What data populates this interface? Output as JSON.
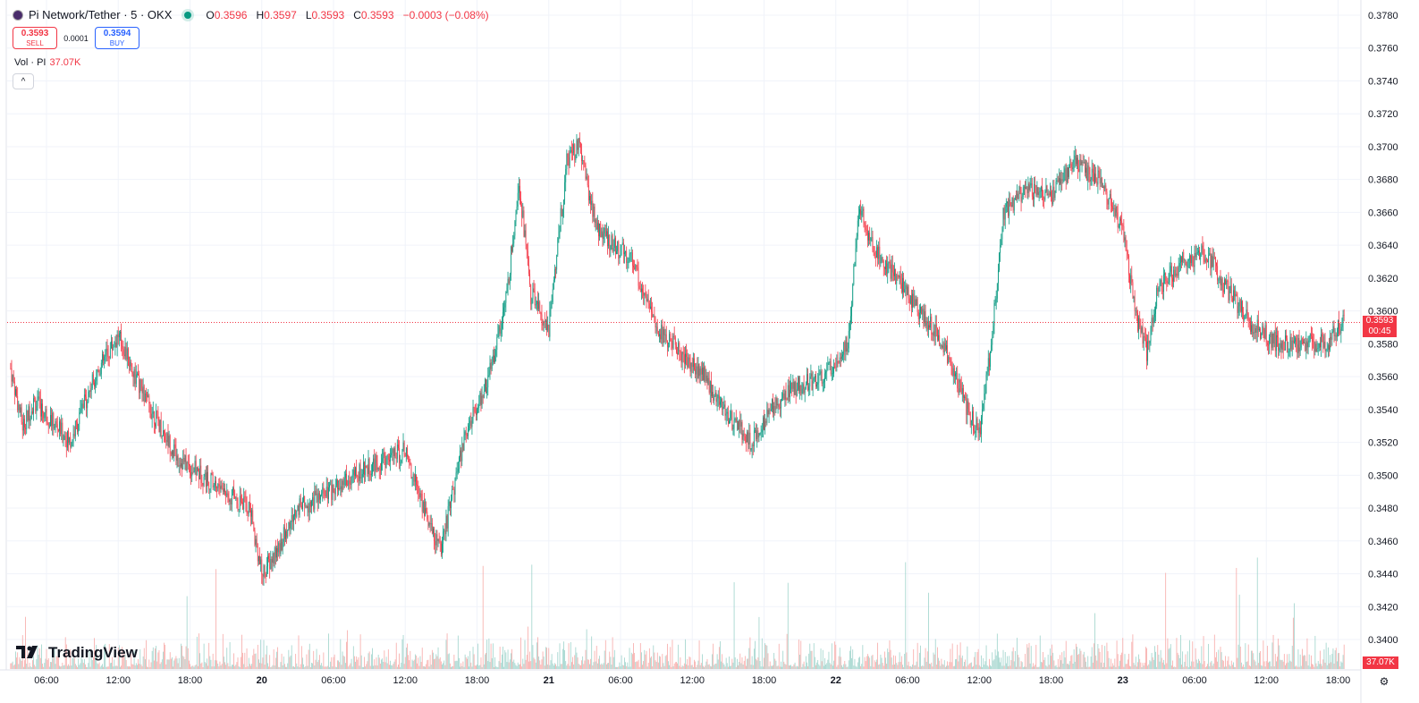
{
  "header": {
    "title": "Pi Network/Tether · 5 · OKX",
    "ohlc": [
      {
        "label": "O",
        "value": "0.3596"
      },
      {
        "label": "H",
        "value": "0.3597"
      },
      {
        "label": "L",
        "value": "0.3593"
      },
      {
        "label": "C",
        "value": "0.3593"
      }
    ],
    "change": "−0.0003 (−0.08%)",
    "sell_price": "0.3593",
    "sell_label": "SELL",
    "spread": "0.0001",
    "buy_price": "0.3594",
    "buy_label": "BUY",
    "volume_label": "Vol · PI",
    "volume_value": "37.07K",
    "collapse_icon": "chevron-up-icon"
  },
  "price_tag": {
    "price": "0.3593",
    "countdown": "00:45"
  },
  "volume_tag": "37.07K",
  "logo_text": "TradingView",
  "colors": {
    "up": "#089981",
    "down": "#f23645",
    "up_vol": "#9ed3cb",
    "down_vol": "#f7a9a7",
    "grid": "#f0f3fa",
    "current_line": "#f23645"
  },
  "chart_data": {
    "type": "candlestick",
    "title": "Pi Network/Tether · 5 · OKX",
    "interval_minutes": 5,
    "ylim": [
      0.339,
      0.378
    ],
    "y_ticks": [
      "0.3780",
      "0.3760",
      "0.3740",
      "0.3720",
      "0.3700",
      "0.3680",
      "0.3660",
      "0.3640",
      "0.3620",
      "0.3600",
      "0.3580",
      "0.3560",
      "0.3540",
      "0.3520",
      "0.3500",
      "0.3480",
      "0.3460",
      "0.3440",
      "0.3420",
      "0.3400"
    ],
    "x_ticks": [
      "06:00",
      "12:00",
      "18:00",
      "20",
      "06:00",
      "12:00",
      "18:00",
      "21",
      "06:00",
      "12:00",
      "18:00",
      "22",
      "06:00",
      "12:00",
      "18:00",
      "23",
      "06:00",
      "12:00",
      "18:00"
    ],
    "current_price": 0.3593,
    "price_path": [
      {
        "t": "19 03:00",
        "price": 0.3565
      },
      {
        "t": "19 04:00",
        "price": 0.353
      },
      {
        "t": "19 05:00",
        "price": 0.3545
      },
      {
        "t": "19 08:00",
        "price": 0.352
      },
      {
        "t": "19 10:00",
        "price": 0.356
      },
      {
        "t": "19 12:00",
        "price": 0.3585
      },
      {
        "t": "19 14:00",
        "price": 0.355
      },
      {
        "t": "19 17:00",
        "price": 0.351
      },
      {
        "t": "19 19:00",
        "price": 0.35
      },
      {
        "t": "19 21:00",
        "price": 0.349
      },
      {
        "t": "19 23:00",
        "price": 0.348
      },
      {
        "t": "20 00:00",
        "price": 0.344
      },
      {
        "t": "20 01:00",
        "price": 0.345
      },
      {
        "t": "20 03:00",
        "price": 0.348
      },
      {
        "t": "20 06:00",
        "price": 0.349
      },
      {
        "t": "20 09:00",
        "price": 0.3505
      },
      {
        "t": "20 12:00",
        "price": 0.3515
      },
      {
        "t": "20 14:00",
        "price": 0.347
      },
      {
        "t": "20 15:00",
        "price": 0.3455
      },
      {
        "t": "20 17:00",
        "price": 0.3525
      },
      {
        "t": "20 19:00",
        "price": 0.356
      },
      {
        "t": "20 20:30",
        "price": 0.361
      },
      {
        "t": "20 21:30",
        "price": 0.368
      },
      {
        "t": "20 22:30",
        "price": 0.361
      },
      {
        "t": "21 00:00",
        "price": 0.359
      },
      {
        "t": "21 01:30",
        "price": 0.369
      },
      {
        "t": "21 02:30",
        "price": 0.37
      },
      {
        "t": "21 04:00",
        "price": 0.365
      },
      {
        "t": "21 07:00",
        "price": 0.363
      },
      {
        "t": "21 09:00",
        "price": 0.359
      },
      {
        "t": "21 11:00",
        "price": 0.3575
      },
      {
        "t": "21 13:00",
        "price": 0.356
      },
      {
        "t": "21 15:00",
        "price": 0.3535
      },
      {
        "t": "21 17:00",
        "price": 0.352
      },
      {
        "t": "21 19:00",
        "price": 0.3545
      },
      {
        "t": "21 21:00",
        "price": 0.3555
      },
      {
        "t": "21 23:00",
        "price": 0.356
      },
      {
        "t": "22 01:00",
        "price": 0.358
      },
      {
        "t": "22 02:00",
        "price": 0.3665
      },
      {
        "t": "22 03:00",
        "price": 0.364
      },
      {
        "t": "22 05:00",
        "price": 0.362
      },
      {
        "t": "22 07:00",
        "price": 0.36
      },
      {
        "t": "22 09:00",
        "price": 0.358
      },
      {
        "t": "22 11:00",
        "price": 0.354
      },
      {
        "t": "22 12:00",
        "price": 0.3525
      },
      {
        "t": "22 13:00",
        "price": 0.358
      },
      {
        "t": "22 14:00",
        "price": 0.366
      },
      {
        "t": "22 16:00",
        "price": 0.3675
      },
      {
        "t": "22 18:00",
        "price": 0.367
      },
      {
        "t": "22 20:00",
        "price": 0.369
      },
      {
        "t": "22 22:00",
        "price": 0.368
      },
      {
        "t": "23 00:00",
        "price": 0.365
      },
      {
        "t": "23 01:00",
        "price": 0.36
      },
      {
        "t": "23 02:00",
        "price": 0.3575
      },
      {
        "t": "23 03:00",
        "price": 0.3615
      },
      {
        "t": "23 05:00",
        "price": 0.363
      },
      {
        "t": "23 07:00",
        "price": 0.3635
      },
      {
        "t": "23 09:00",
        "price": 0.361
      },
      {
        "t": "23 11:00",
        "price": 0.359
      },
      {
        "t": "23 13:00",
        "price": 0.358
      },
      {
        "t": "23 15:00",
        "price": 0.358
      },
      {
        "t": "23 17:00",
        "price": 0.358
      },
      {
        "t": "23 18:30",
        "price": 0.3593
      }
    ],
    "volume": {
      "last": 37070,
      "max": 85000
    }
  }
}
